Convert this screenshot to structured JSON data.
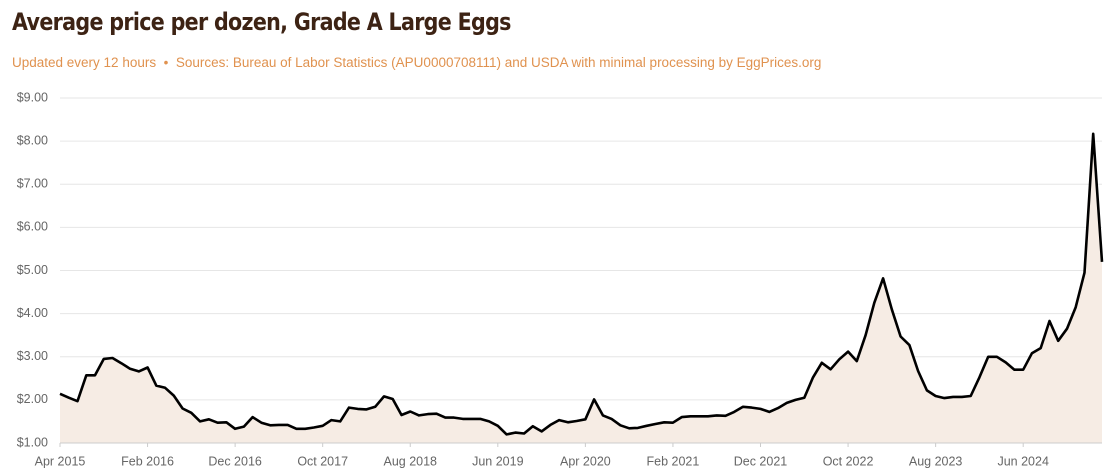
{
  "chart_data": {
    "type": "line",
    "title": "Average price per dozen, Grade A Large Eggs",
    "subtitle": "Updated every 12 hours  •  Sources: Bureau of Labor Statistics (APU0000708111) and USDA with minimal processing by EggPrices.org",
    "x": [
      "2015-04",
      "2015-05",
      "2015-06",
      "2015-07",
      "2015-08",
      "2015-09",
      "2015-10",
      "2015-11",
      "2015-12",
      "2016-01",
      "2016-02",
      "2016-03",
      "2016-04",
      "2016-05",
      "2016-06",
      "2016-07",
      "2016-08",
      "2016-09",
      "2016-10",
      "2016-11",
      "2016-12",
      "2017-01",
      "2017-02",
      "2017-03",
      "2017-04",
      "2017-05",
      "2017-06",
      "2017-07",
      "2017-08",
      "2017-09",
      "2017-10",
      "2017-11",
      "2017-12",
      "2018-01",
      "2018-02",
      "2018-03",
      "2018-04",
      "2018-05",
      "2018-06",
      "2018-07",
      "2018-08",
      "2018-09",
      "2018-10",
      "2018-11",
      "2018-12",
      "2019-01",
      "2019-02",
      "2019-03",
      "2019-04",
      "2019-05",
      "2019-06",
      "2019-07",
      "2019-08",
      "2019-09",
      "2019-10",
      "2019-11",
      "2019-12",
      "2020-01",
      "2020-02",
      "2020-03",
      "2020-04",
      "2020-05",
      "2020-06",
      "2020-07",
      "2020-08",
      "2020-09",
      "2020-10",
      "2020-11",
      "2020-12",
      "2021-01",
      "2021-02",
      "2021-03",
      "2021-04",
      "2021-05",
      "2021-06",
      "2021-07",
      "2021-08",
      "2021-09",
      "2021-10",
      "2021-11",
      "2021-12",
      "2022-01",
      "2022-02",
      "2022-03",
      "2022-04",
      "2022-05",
      "2022-06",
      "2022-07",
      "2022-08",
      "2022-09",
      "2022-10",
      "2022-11",
      "2022-12",
      "2023-01",
      "2023-02",
      "2023-03",
      "2023-04",
      "2023-05",
      "2023-06",
      "2023-07",
      "2023-08",
      "2023-09",
      "2023-10",
      "2023-11",
      "2023-12",
      "2024-01",
      "2024-02",
      "2024-03",
      "2024-04",
      "2024-05",
      "2024-06",
      "2024-07",
      "2024-08",
      "2024-09",
      "2024-10",
      "2024-11",
      "2024-12",
      "2025-01",
      "2025-02",
      "2025-03"
    ],
    "series": [
      {
        "name": "Average price",
        "color": "#000000",
        "fill": "#f6ece4",
        "values": [
          2.14,
          2.05,
          1.97,
          2.57,
          2.57,
          2.95,
          2.97,
          2.85,
          2.72,
          2.66,
          2.75,
          2.33,
          2.28,
          2.1,
          1.8,
          1.7,
          1.5,
          1.55,
          1.47,
          1.48,
          1.33,
          1.38,
          1.6,
          1.47,
          1.41,
          1.42,
          1.42,
          1.33,
          1.33,
          1.36,
          1.4,
          1.53,
          1.5,
          1.82,
          1.79,
          1.78,
          1.84,
          2.08,
          2.02,
          1.65,
          1.73,
          1.64,
          1.67,
          1.68,
          1.59,
          1.59,
          1.56,
          1.56,
          1.56,
          1.5,
          1.4,
          1.2,
          1.24,
          1.22,
          1.39,
          1.27,
          1.42,
          1.53,
          1.48,
          1.51,
          1.55,
          2.01,
          1.64,
          1.56,
          1.41,
          1.34,
          1.35,
          1.4,
          1.44,
          1.48,
          1.47,
          1.6,
          1.62,
          1.62,
          1.62,
          1.64,
          1.63,
          1.72,
          1.84,
          1.82,
          1.79,
          1.72,
          1.81,
          1.93,
          2.0,
          2.05,
          2.52,
          2.86,
          2.71,
          2.94,
          3.12,
          2.9,
          3.5,
          4.25,
          4.82,
          4.1,
          3.47,
          3.27,
          2.67,
          2.22,
          2.09,
          2.04,
          2.07,
          2.07,
          2.09,
          2.52,
          3.0,
          3.0,
          2.87,
          2.7,
          2.7,
          3.08,
          3.2,
          3.83,
          3.37,
          3.65,
          4.15,
          4.95,
          8.17,
          5.2
        ]
      }
    ],
    "xlim": [
      "2015-04",
      "2025-03"
    ],
    "xticks": [
      {
        "value": "2015-04",
        "label": "Apr 2015"
      },
      {
        "value": "2016-02",
        "label": "Feb 2016"
      },
      {
        "value": "2016-12",
        "label": "Dec 2016"
      },
      {
        "value": "2017-10",
        "label": "Oct 2017"
      },
      {
        "value": "2018-08",
        "label": "Aug 2018"
      },
      {
        "value": "2019-06",
        "label": "Jun 2019"
      },
      {
        "value": "2020-04",
        "label": "Apr 2020"
      },
      {
        "value": "2021-02",
        "label": "Feb 2021"
      },
      {
        "value": "2021-12",
        "label": "Dec 2021"
      },
      {
        "value": "2022-10",
        "label": "Oct 2022"
      },
      {
        "value": "2023-08",
        "label": "Aug 2023"
      },
      {
        "value": "2024-06",
        "label": "Jun 2024"
      }
    ],
    "ylim": [
      1,
      9
    ],
    "yticks": [
      {
        "value": 1,
        "label": "$1.00"
      },
      {
        "value": 2,
        "label": "$2.00"
      },
      {
        "value": 3,
        "label": "$3.00"
      },
      {
        "value": 4,
        "label": "$4.00"
      },
      {
        "value": 5,
        "label": "$5.00"
      },
      {
        "value": 6,
        "label": "$6.00"
      },
      {
        "value": 7,
        "label": "$7.00"
      },
      {
        "value": 8,
        "label": "$8.00"
      },
      {
        "value": 9,
        "label": "$9.00"
      }
    ],
    "grid": true
  }
}
